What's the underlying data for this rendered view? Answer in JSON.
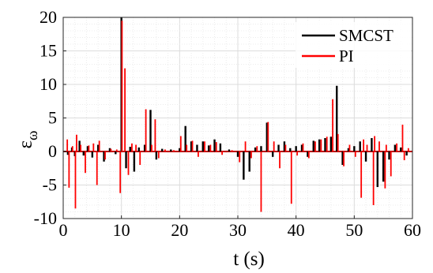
{
  "chart_data": {
    "type": "line",
    "title": "",
    "xlabel": "t (s)",
    "ylabel_symbol": "ε",
    "ylabel_subscript": "ω",
    "xlim": [
      0,
      60
    ],
    "ylim": [
      -10,
      20
    ],
    "xticks": [
      0,
      10,
      20,
      30,
      40,
      50,
      60
    ],
    "yticks": [
      -10,
      -5,
      0,
      5,
      10,
      15,
      20
    ],
    "xtick_labels": [
      "0",
      "10",
      "20",
      "30",
      "40",
      "50",
      "60"
    ],
    "ytick_labels": [
      "-10",
      "-5",
      "0",
      "5",
      "10",
      "15",
      "20"
    ],
    "grid": true,
    "legend_position": "top-right",
    "series": [
      {
        "name": "SMCST",
        "color": "#000000",
        "spikes": [
          [
            0.8,
            -0.5
          ],
          [
            1.5,
            0.6
          ],
          [
            2.0,
            -0.7
          ],
          [
            2.8,
            1.6
          ],
          [
            3.5,
            -0.6
          ],
          [
            4.2,
            0.8
          ],
          [
            5.0,
            -0.9
          ],
          [
            6.0,
            1.0
          ],
          [
            7.0,
            -1.5
          ],
          [
            8.0,
            0.5
          ],
          [
            9.0,
            -0.4
          ],
          [
            10.0,
            20.0
          ],
          [
            10.8,
            -2.5
          ],
          [
            11.5,
            0.7
          ],
          [
            12.2,
            -3.0
          ],
          [
            13.0,
            0.6
          ],
          [
            14.0,
            1.0
          ],
          [
            15.0,
            6.2
          ],
          [
            16.0,
            -1.2
          ],
          [
            17.0,
            0.4
          ],
          [
            18.5,
            0.3
          ],
          [
            20.0,
            0.5
          ],
          [
            21.0,
            3.8
          ],
          [
            22.0,
            1.5
          ],
          [
            23.0,
            1.0
          ],
          [
            24.0,
            1.5
          ],
          [
            25.0,
            0.9
          ],
          [
            26.0,
            1.8
          ],
          [
            27.0,
            1.2
          ],
          [
            28.5,
            0.3
          ],
          [
            30.0,
            -0.8
          ],
          [
            31.0,
            -4.2
          ],
          [
            32.0,
            -3.0
          ],
          [
            33.0,
            0.6
          ],
          [
            34.0,
            0.8
          ],
          [
            35.0,
            4.3
          ],
          [
            36.0,
            -0.8
          ],
          [
            37.0,
            1.0
          ],
          [
            38.0,
            1.5
          ],
          [
            39.0,
            0.5
          ],
          [
            40.0,
            0.8
          ],
          [
            41.0,
            1.0
          ],
          [
            42.0,
            -0.8
          ],
          [
            43.0,
            1.6
          ],
          [
            44.0,
            1.8
          ],
          [
            45.0,
            2.0
          ],
          [
            46.0,
            2.2
          ],
          [
            47.0,
            9.8
          ],
          [
            48.0,
            -2.0
          ],
          [
            49.0,
            0.5
          ],
          [
            50.0,
            0.8
          ],
          [
            51.0,
            1.5
          ],
          [
            52.0,
            -1.5
          ],
          [
            53.0,
            2.0
          ],
          [
            54.0,
            -5.3
          ],
          [
            55.0,
            -4.5
          ],
          [
            56.0,
            -1.2
          ],
          [
            57.0,
            1.0
          ],
          [
            58.0,
            0.6
          ],
          [
            59.0,
            -0.6
          ]
        ]
      },
      {
        "name": "PI",
        "color": "#ff0000",
        "spikes": [
          [
            0.7,
            1.8
          ],
          [
            1.0,
            -5.4
          ],
          [
            1.6,
            0.8
          ],
          [
            2.1,
            -8.5
          ],
          [
            2.3,
            2.5
          ],
          [
            3.0,
            1.0
          ],
          [
            3.8,
            -3.2
          ],
          [
            4.4,
            0.9
          ],
          [
            5.2,
            1.2
          ],
          [
            5.8,
            -5.0
          ],
          [
            6.2,
            1.6
          ],
          [
            7.2,
            -1.2
          ],
          [
            8.2,
            0.4
          ],
          [
            9.2,
            0.3
          ],
          [
            9.8,
            -6.2
          ],
          [
            10.1,
            19.5
          ],
          [
            10.6,
            12.4
          ],
          [
            11.2,
            -3.5
          ],
          [
            11.8,
            1.2
          ],
          [
            12.5,
            1.0
          ],
          [
            13.2,
            -2.0
          ],
          [
            14.2,
            6.3
          ],
          [
            15.2,
            1.0
          ],
          [
            15.8,
            4.8
          ],
          [
            16.4,
            -1.0
          ],
          [
            17.5,
            0.3
          ],
          [
            19.0,
            0.2
          ],
          [
            20.2,
            2.3
          ],
          [
            21.2,
            1.0
          ],
          [
            22.2,
            1.6
          ],
          [
            23.2,
            -0.8
          ],
          [
            24.3,
            1.5
          ],
          [
            25.3,
            1.0
          ],
          [
            26.3,
            1.4
          ],
          [
            27.3,
            -0.5
          ],
          [
            29.0,
            0.2
          ],
          [
            30.3,
            -1.6
          ],
          [
            31.3,
            1.5
          ],
          [
            32.3,
            -1.0
          ],
          [
            33.3,
            0.8
          ],
          [
            34.0,
            -9.0
          ],
          [
            35.2,
            4.4
          ],
          [
            36.2,
            1.5
          ],
          [
            37.2,
            -2.5
          ],
          [
            38.2,
            1.0
          ],
          [
            39.2,
            -7.8
          ],
          [
            40.2,
            -0.6
          ],
          [
            41.2,
            1.2
          ],
          [
            42.2,
            -1.0
          ],
          [
            43.3,
            1.5
          ],
          [
            44.3,
            1.8
          ],
          [
            45.3,
            2.2
          ],
          [
            46.3,
            7.8
          ],
          [
            47.2,
            2.6
          ],
          [
            48.2,
            -2.2
          ],
          [
            49.2,
            1.0
          ],
          [
            50.2,
            -0.8
          ],
          [
            51.2,
            -6.9
          ],
          [
            51.6,
            1.8
          ],
          [
            52.2,
            1.0
          ],
          [
            53.3,
            -8.0
          ],
          [
            53.5,
            2.3
          ],
          [
            54.3,
            1.5
          ],
          [
            55.3,
            -5.5
          ],
          [
            55.5,
            1.0
          ],
          [
            56.3,
            -3.7
          ],
          [
            57.3,
            1.2
          ],
          [
            58.3,
            4.0
          ],
          [
            58.6,
            -1.3
          ],
          [
            59.3,
            0.5
          ]
        ]
      }
    ]
  }
}
